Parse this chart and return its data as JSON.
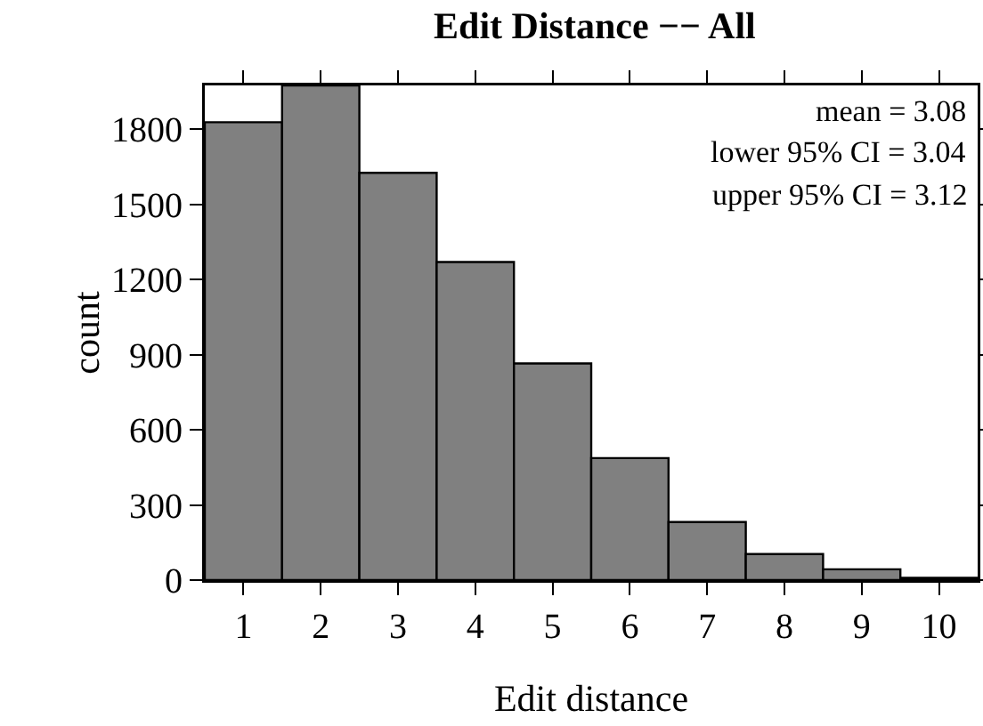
{
  "chart_data": {
    "type": "histogram",
    "title": "Edit Distance −− All",
    "xlabel": "Edit distance",
    "ylabel": "count",
    "bins": [
      0.5,
      1.5,
      2.5,
      3.5,
      4.5,
      5.5,
      6.5,
      7.5,
      8.5,
      9.5,
      10.5
    ],
    "values": [
      1828,
      1975,
      1626,
      1270,
      865,
      487,
      232,
      104,
      43,
      9
    ],
    "color": "#808080",
    "xlim": [
      0.5,
      10.5
    ],
    "xticks": [
      1,
      2,
      3,
      4,
      5,
      6,
      7,
      8,
      9,
      10
    ],
    "ylim": [
      0,
      1975
    ],
    "yticks": [
      0,
      300,
      600,
      900,
      1200,
      1500,
      1800
    ],
    "grid": false,
    "annotations": [
      "mean = 3.08",
      "lower 95% CI = 3.04",
      "upper 95% CI = 3.12"
    ]
  }
}
